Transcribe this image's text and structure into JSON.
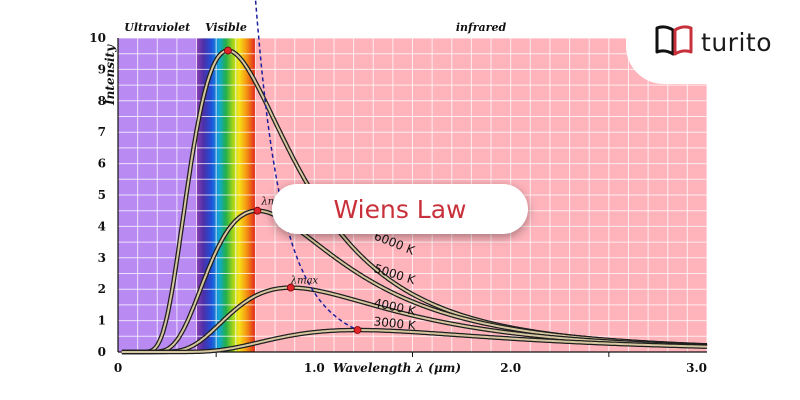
{
  "brand": {
    "name": "turito",
    "accent": "#c8313b",
    "logo_icon": "open-book-icon"
  },
  "banner": {
    "text": "Wiens Law"
  },
  "regions": [
    {
      "label": "Ultraviolet",
      "from": 0,
      "to": 0.4,
      "color": "#b98af2"
    },
    {
      "label": "Visible",
      "from": 0.4,
      "to": 0.7
    },
    {
      "label": "infrared",
      "from": 0.7,
      "to": 3.0,
      "color": "#ffb4bc"
    }
  ],
  "chart_data": {
    "type": "line",
    "xlabel": "Wavelength λ (μm)",
    "ylabel": "Intensity",
    "xlim": [
      0,
      3.0
    ],
    "ylim": [
      0,
      10
    ],
    "x_ticks": [
      "0",
      "1.0",
      "2.0",
      "3.0"
    ],
    "y_ticks": [
      "0",
      "1",
      "2",
      "3",
      "4",
      "5",
      "6",
      "7",
      "8",
      "9",
      "10"
    ],
    "series": [
      {
        "name": "6000 K",
        "label": "6000 K",
        "peak_x": 0.56,
        "peak_y": 9.6,
        "label_x": 1.3,
        "label_y": 3.6
      },
      {
        "name": "5000 K",
        "label": "5000 K",
        "peak_x": 0.71,
        "peak_y": 4.5,
        "label_x": 1.3,
        "label_y": 2.55
      },
      {
        "name": "4000 K",
        "label": "4000 K",
        "peak_x": 0.88,
        "peak_y": 2.05,
        "label_x": 1.3,
        "label_y": 1.45
      },
      {
        "name": "3000 K",
        "label": "3000 K",
        "peak_x": 1.22,
        "peak_y": 0.7,
        "label_x": 1.3,
        "label_y": 0.85
      }
    ],
    "peak_label": "λmax",
    "curve_color": "#2a2a2a",
    "peak_marker_color": "#e0242c",
    "locus_color": "#1b1f9c",
    "grid": true
  }
}
